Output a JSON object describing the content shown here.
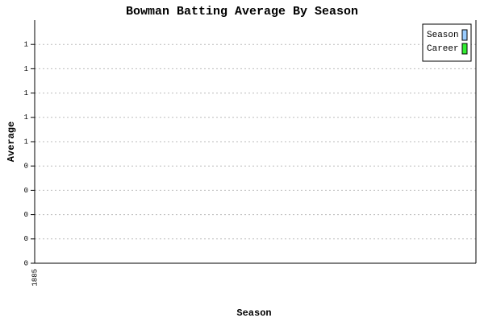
{
  "chart_data": {
    "type": "bar",
    "title": "Bowman Batting Average By Season",
    "x_label": "Season",
    "y_label": "Average",
    "categories": [
      "1885"
    ],
    "series": [
      {
        "name": "Season",
        "color": "#99ccff",
        "values": [
          null
        ]
      },
      {
        "name": "Career",
        "color": "#33ee33",
        "values": [
          null
        ]
      }
    ],
    "ylim": [
      0,
      1.0
    ],
    "yticks": [
      0,
      {
        "value": 0.1,
        "label": "0"
      },
      {
        "value": 0.2,
        "label": "0"
      },
      {
        "value": 0.3,
        "label": "0"
      },
      {
        "value": 0.4,
        "label": "0"
      },
      {
        "value": 0.5,
        "label": "1"
      },
      {
        "value": 0.6,
        "label": "1"
      },
      {
        "value": 0.7,
        "label": "1"
      },
      {
        "value": 0.8,
        "label": "1"
      },
      {
        "value": 0.9,
        "label": "1"
      }
    ],
    "grid": true,
    "legend": "top-right"
  }
}
